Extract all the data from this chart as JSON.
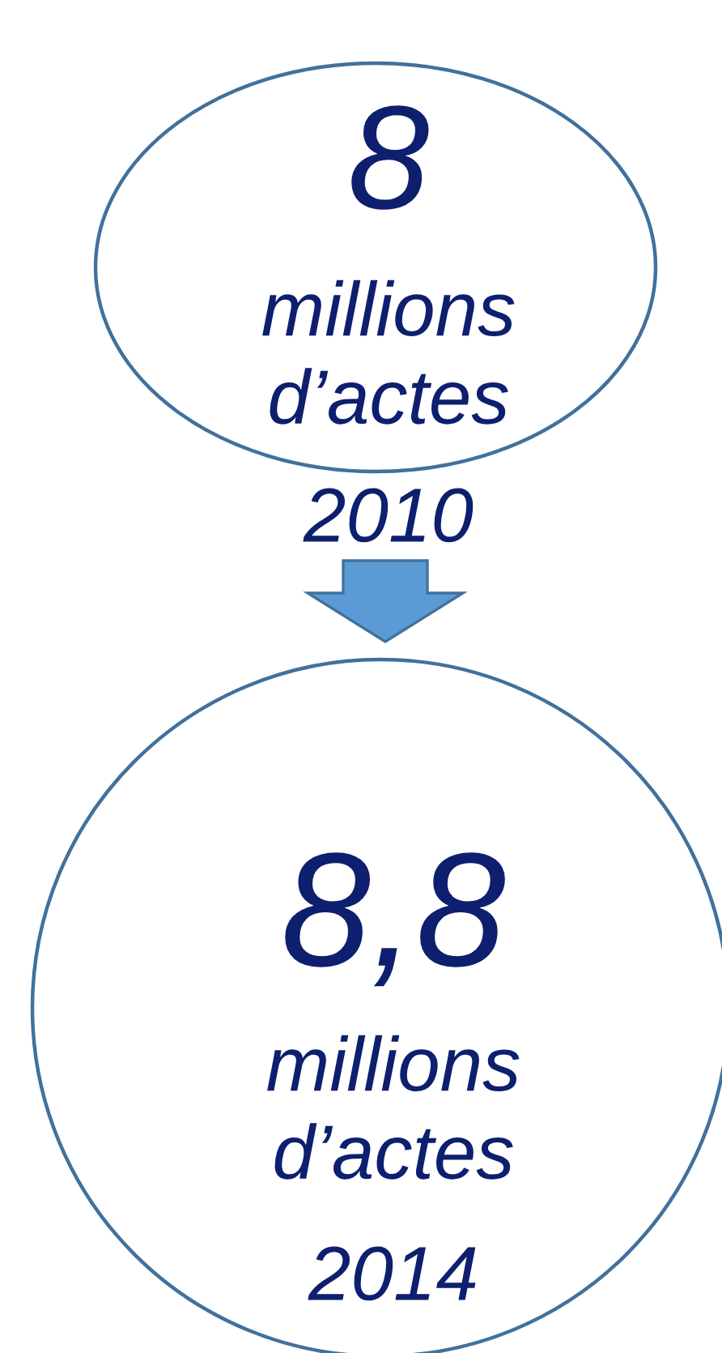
{
  "chart_data": {
    "type": "other",
    "categories": [
      "2010",
      "2014"
    ],
    "values": [
      8,
      8.8
    ],
    "value_labels": [
      "8",
      "8,8"
    ],
    "annotations": [
      "millions d’actes",
      "millions d’actes"
    ],
    "colors": [
      "#0d1f6e",
      "#0d1f6e"
    ]
  }
}
